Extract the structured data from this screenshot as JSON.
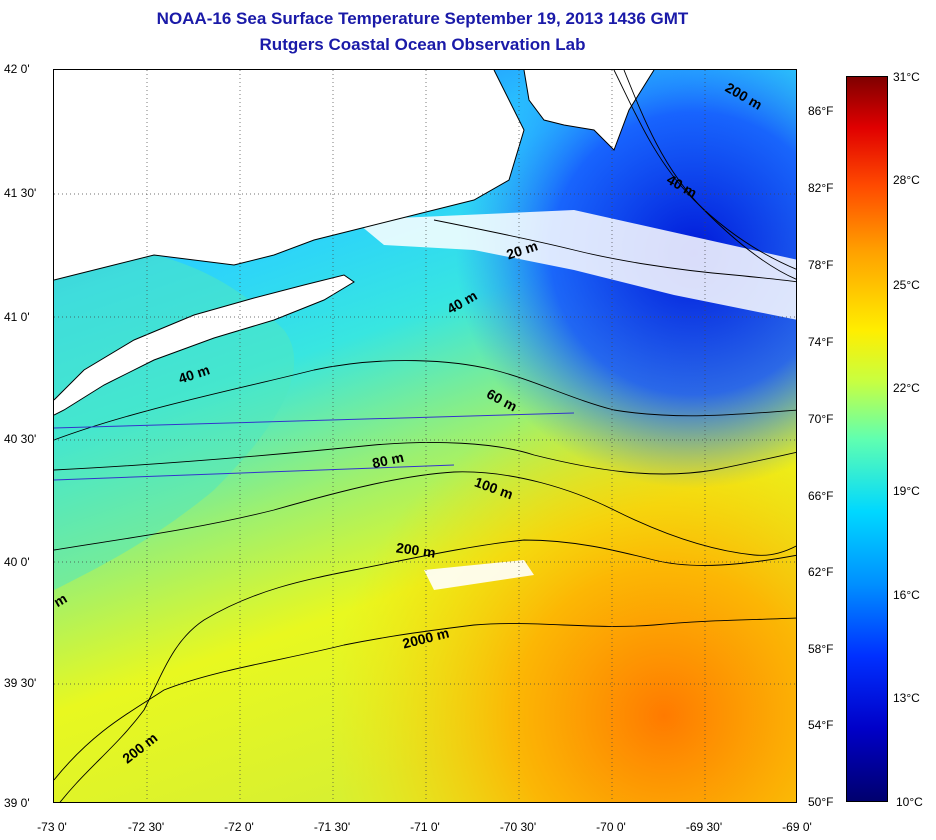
{
  "title": "NOAA-16 Sea Surface Temperature September 19, 2013 1436 GMT",
  "subtitle": "Rutgers Coastal Ocean Observation Lab",
  "lat_ticks": [
    "42 0'",
    "41 30'",
    "41 0'",
    "40 30'",
    "40 0'",
    "39 30'",
    "39 0'"
  ],
  "lon_ticks": [
    "-73 0'",
    "-72 30'",
    "-72 0'",
    "-71 30'",
    "-71 0'",
    "-70 30'",
    "-70 0'",
    "-69 30'",
    "-69 0'"
  ],
  "fahrenheit_ticks": [
    "86°F",
    "82°F",
    "78°F",
    "74°F",
    "70°F",
    "66°F",
    "62°F",
    "58°F",
    "54°F",
    "50°F"
  ],
  "celsius_ticks": [
    "31°C",
    "28°C",
    "25°C",
    "22°C",
    "19°C",
    "16°C",
    "13°C",
    "10°C"
  ],
  "colorbar": {
    "min_c": 10,
    "max_c": 31,
    "colors": [
      "#00006e",
      "#0000ff",
      "#00a0ff",
      "#00ffff",
      "#c8ff40",
      "#ffff00",
      "#ffa000",
      "#ff0000",
      "#800000"
    ]
  },
  "contour_labels": [
    "200 m",
    "40 m",
    "20 m",
    "40 m",
    "40 m",
    "60 m",
    "80 m",
    "100 m",
    "200 m",
    "2000 m",
    "200 m",
    "m"
  ],
  "colors": {
    "title": "#1a1aa8",
    "land": "#ffffff",
    "coast": "#000000",
    "track": "#3333cc"
  }
}
